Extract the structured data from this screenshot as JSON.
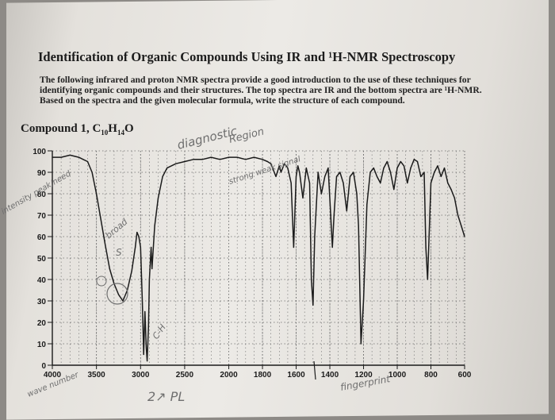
{
  "page": {
    "title": "Identification of Organic Compounds Using IR and ¹H-NMR Spectroscopy",
    "intro": "The following infrared and proton NMR spectra provide a good introduction to the use of these techniques for identifying organic compounds and their structures. The top spectra are IR and the bottom spectra are ¹H-NMR. Based on the spectra and the given molecular formula, write the structure of each compound.",
    "compound_label": "Compound 1, C",
    "compound_c": "10",
    "compound_h": "H",
    "compound_h_sub": "14",
    "compound_o": "O"
  },
  "handwriting": {
    "diagnostic": "diagnostic",
    "region": "Region",
    "fingerprint": "fingerprint",
    "wavenumber": "wave number",
    "strong_weak": "strong weak signal",
    "broad": "broad",
    "s": "S",
    "ch": "C-H",
    "bottom_note": "2↗ PL",
    "side_note": "intensity peak/need"
  },
  "colors": {
    "ink": "#1b1b1b",
    "grid": "#6b6b6b",
    "pencil": "#6f6f6f"
  },
  "chart_data": {
    "type": "line",
    "title": "",
    "xlabel": "",
    "ylabel": "",
    "x_reversed": true,
    "xlim": [
      4000,
      600
    ],
    "ylim": [
      0,
      100
    ],
    "x_ticks": [
      4000,
      3500,
      3000,
      2500,
      2000,
      1800,
      1600,
      1400,
      1200,
      1000,
      800,
      600
    ],
    "y_ticks": [
      0,
      10,
      20,
      30,
      40,
      50,
      60,
      70,
      80,
      90,
      100
    ],
    "grid": true,
    "series": [
      {
        "x": [
          4000,
          3900,
          3800,
          3700,
          3650,
          3600,
          3550,
          3500,
          3450,
          3400,
          3350,
          3300,
          3250,
          3200,
          3150,
          3100,
          3060,
          3040,
          3020,
          3000,
          2980,
          2965,
          2950,
          2935,
          2925,
          2910,
          2900,
          2880,
          2870,
          2860,
          2840,
          2800,
          2750,
          2700,
          2600,
          2500,
          2400,
          2300,
          2200,
          2100,
          2000,
          1950,
          1900,
          1850,
          1800,
          1770,
          1750,
          1720,
          1700,
          1690,
          1670,
          1650,
          1630,
          1615,
          1600,
          1590,
          1580,
          1560,
          1540,
          1520,
          1510,
          1500,
          1490,
          1470,
          1460,
          1450,
          1430,
          1410,
          1395,
          1385,
          1375,
          1360,
          1340,
          1320,
          1300,
          1280,
          1260,
          1240,
          1230,
          1215,
          1200,
          1180,
          1160,
          1140,
          1120,
          1100,
          1080,
          1060,
          1040,
          1020,
          1000,
          980,
          960,
          940,
          920,
          900,
          880,
          860,
          840,
          830,
          820,
          800,
          780,
          760,
          740,
          720,
          700,
          680,
          660,
          640,
          620,
          600
        ],
        "y": [
          97,
          97,
          98,
          97,
          96,
          95,
          90,
          80,
          68,
          56,
          45,
          38,
          33,
          30,
          35,
          44,
          55,
          62,
          60,
          55,
          30,
          5,
          25,
          8,
          2,
          18,
          40,
          55,
          45,
          52,
          65,
          78,
          88,
          92,
          94,
          95,
          96,
          96,
          97,
          96,
          97,
          97,
          96,
          97,
          96,
          95,
          94,
          88,
          93,
          90,
          94,
          92,
          85,
          55,
          88,
          93,
          90,
          78,
          92,
          85,
          40,
          28,
          60,
          90,
          85,
          80,
          88,
          92,
          70,
          55,
          70,
          88,
          90,
          85,
          72,
          88,
          90,
          80,
          65,
          10,
          30,
          75,
          90,
          92,
          88,
          85,
          92,
          95,
          90,
          82,
          92,
          95,
          93,
          85,
          92,
          96,
          95,
          88,
          90,
          55,
          40,
          85,
          90,
          93,
          88,
          92,
          85,
          82,
          78,
          70,
          65,
          60
        ]
      }
    ]
  }
}
